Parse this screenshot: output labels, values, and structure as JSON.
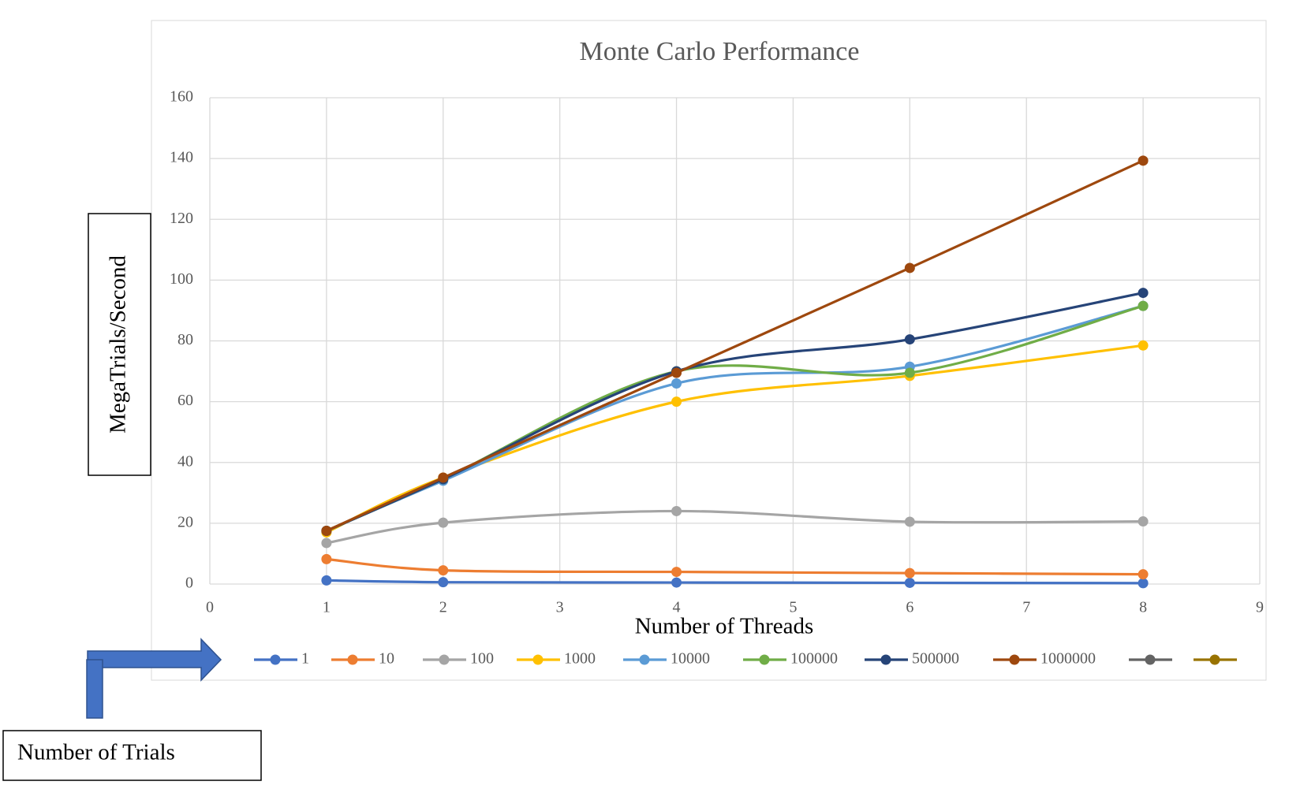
{
  "chart_data": {
    "type": "line",
    "title": "Monte Carlo Performance",
    "x_label": "Number of Threads",
    "y_label": "MegaTrials/Second",
    "annotation": "Number of Trials",
    "x": [
      1,
      2,
      4,
      6,
      8
    ],
    "series": [
      {
        "name": "1",
        "color": "#4472c4",
        "values": [
          1.2,
          0.6,
          0.5,
          0.4,
          0.3
        ]
      },
      {
        "name": "10",
        "color": "#ed7d31",
        "values": [
          8.2,
          4.5,
          4,
          3.6,
          3.2
        ]
      },
      {
        "name": "100",
        "color": "#a5a5a5",
        "values": [
          13.5,
          20.2,
          24,
          20.5,
          20.6
        ]
      },
      {
        "name": "1000",
        "color": "#ffc000",
        "values": [
          17,
          35,
          60,
          68.5,
          78.5
        ]
      },
      {
        "name": "10000",
        "color": "#5b9bd5",
        "values": [
          17.5,
          34,
          66,
          71.5,
          91.5
        ]
      },
      {
        "name": "100000",
        "color": "#70ad47",
        "values": [
          17.5,
          34.5,
          70,
          69.5,
          91.5
        ]
      },
      {
        "name": "500000",
        "color": "#264478",
        "values": [
          17.5,
          34.5,
          70,
          80.5,
          95.8
        ]
      },
      {
        "name": "1000000",
        "color": "#9e480e",
        "values": [
          17.5,
          35,
          69.5,
          104,
          139.3
        ]
      },
      {
        "name": null,
        "color": "#636363",
        "values": [
          null,
          null,
          null,
          null,
          null
        ]
      },
      {
        "name": null,
        "color": "#997300",
        "values": [
          null,
          null,
          null,
          null,
          null
        ]
      }
    ],
    "xlim": [
      0,
      9
    ],
    "xticks": [
      0,
      1,
      2,
      3,
      4,
      5,
      6,
      7,
      8,
      9
    ],
    "ylim": [
      0,
      160
    ],
    "yticks": [
      0,
      20,
      40,
      60,
      80,
      100,
      120,
      140,
      160
    ],
    "grid": true,
    "smooth": true,
    "legend": "bottom"
  }
}
